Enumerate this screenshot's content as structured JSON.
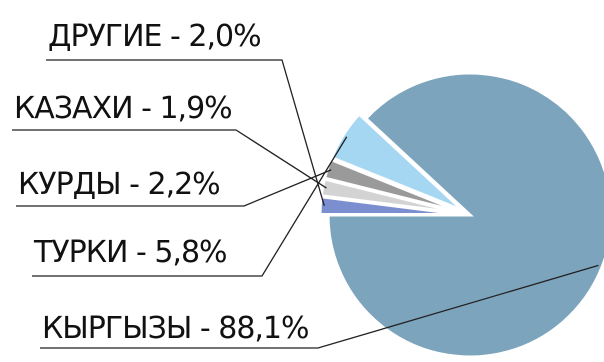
{
  "chart_data": {
    "type": "pie",
    "title": "",
    "slices": [
      {
        "label": "КЫРГЫЗЫ - 88,1%",
        "name": "КЫРГЫЗЫ",
        "value": 88.1,
        "color": "#7da4bd",
        "exploded": false
      },
      {
        "label": "ТУРКИ - 5,8%",
        "name": "ТУРКИ",
        "value": 5.8,
        "color": "#a6d7f2",
        "exploded": true
      },
      {
        "label": "КУРДЫ - 2,2%",
        "name": "КУРДЫ",
        "value": 2.2,
        "color": "#9a9a9a",
        "exploded": true
      },
      {
        "label": "КАЗАХИ - 1,9%",
        "name": "КАЗАХИ",
        "value": 1.9,
        "color": "#d3d3d3",
        "exploded": true
      },
      {
        "label": "ДРУГИЕ - 2,0%",
        "name": "ДРУГИЕ",
        "value": 2.0,
        "color": "#7b8fd0",
        "exploded": true
      }
    ],
    "legend": "none",
    "labels_position": "left-with-leader-lines"
  }
}
